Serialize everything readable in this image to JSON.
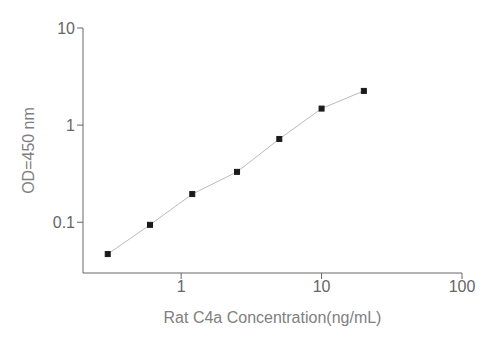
{
  "chart_data": {
    "type": "line",
    "x": [
      0.3,
      0.6,
      1.2,
      2.5,
      5.0,
      10.0,
      20.0
    ],
    "values": [
      0.047,
      0.094,
      0.195,
      0.33,
      0.72,
      1.48,
      2.25
    ],
    "xlabel": "Rat C4a Concentration(ng/mL)",
    "ylabel": "OD=450 nm",
    "xlim": [
      0.2,
      100
    ],
    "ylim": [
      0.03,
      10
    ],
    "xticks": [
      1,
      10,
      100
    ],
    "yticks": [
      0.1,
      1,
      10
    ],
    "log": true,
    "grid": false,
    "color": "#bbbbbb",
    "colors": [
      "#1a1a1a",
      "#1a1a1a",
      "#1a1a1a",
      "#1a1a1a",
      "#1a1a1a",
      "#1a1a1a",
      "#1a1a1a"
    ],
    "marker": "square"
  }
}
